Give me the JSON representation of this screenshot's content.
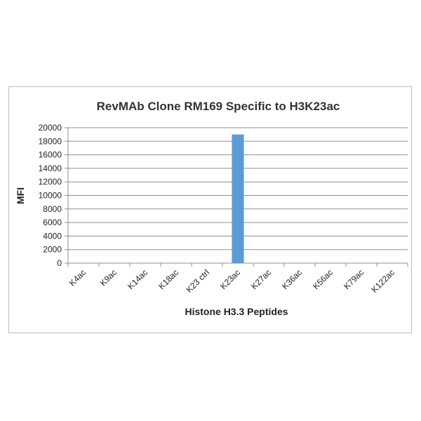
{
  "chart_data": {
    "type": "bar",
    "title": "RevMAb Clone  RM169 Specific to H3K23ac",
    "xlabel": "Histone H3.3 Peptides",
    "ylabel": "MFI",
    "categories": [
      "K4ac",
      "K9ac",
      "K14ac",
      "K18ac",
      "K23 ctrl",
      "K23ac",
      "K27ac",
      "K36ac",
      "K56ac",
      "K79ac",
      "K122ac"
    ],
    "series": [
      {
        "values": [
          0,
          0,
          0,
          0,
          0,
          19000,
          0,
          0,
          0,
          0,
          0
        ],
        "color": "#5b9bd5"
      }
    ],
    "ylim": [
      0,
      20000
    ],
    "yticks": [
      0,
      2000,
      4000,
      6000,
      8000,
      10000,
      12000,
      14000,
      16000,
      18000,
      20000
    ],
    "grid": true,
    "legend": "none"
  }
}
